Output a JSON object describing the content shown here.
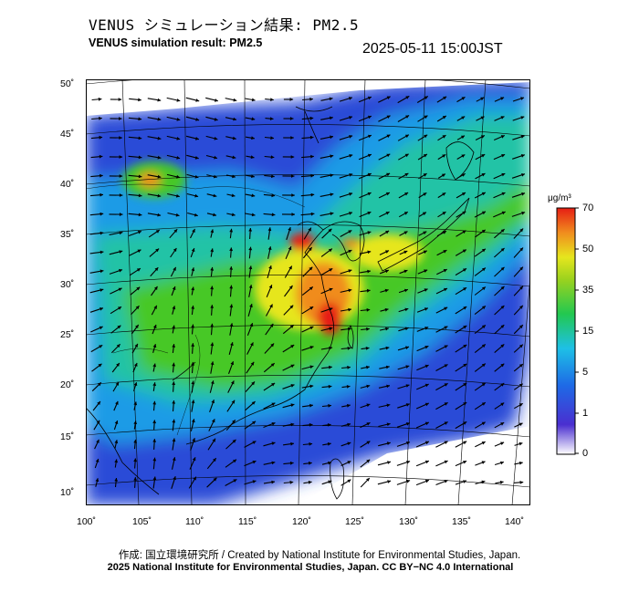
{
  "header": {
    "title_jp": "VENUS シミュレーション結果: PM2.5",
    "title_en": "VENUS simulation result: PM2.5",
    "timestamp": "2025-05-11 15:00JST"
  },
  "map": {
    "lat_labels": [
      "50˚",
      "45˚",
      "40˚",
      "35˚",
      "30˚",
      "25˚",
      "20˚",
      "15˚",
      "10˚"
    ],
    "lon_labels": [
      "100˚",
      "105˚",
      "110˚",
      "115˚",
      "120˚",
      "125˚",
      "130˚",
      "135˚",
      "140˚"
    ],
    "colors": {
      "very_low": "#2a4bd7",
      "low": "#1e9be6",
      "medium": "#22c3a6",
      "moderate": "#46c828",
      "elevated": "#e6e61e",
      "high": "#f08c1e",
      "very_high": "#e61e14",
      "land_line": "#000000",
      "wind_arrow": "#000000"
    }
  },
  "colorbar": {
    "unit": "μg/m³",
    "ticks": [
      "70",
      "50",
      "35",
      "15",
      "5",
      "1",
      "0"
    ]
  },
  "footer": {
    "credit": "作成: 国立環境研究所 / Created by National Institute for Environmental Studies, Japan.",
    "copyright": "2025 National Institute for Environmental Studies, Japan. CC BY−NC 4.0 International"
  }
}
